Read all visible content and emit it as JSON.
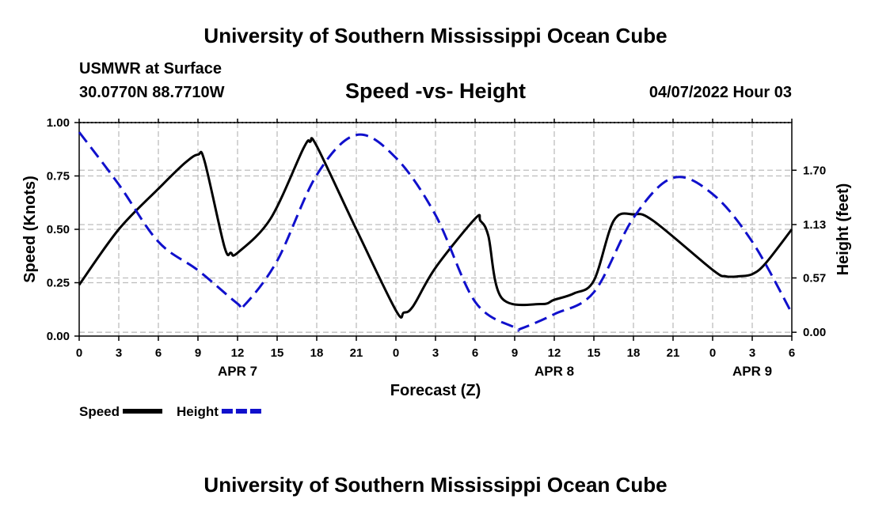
{
  "header": {
    "title": "University of Southern Mississippi Ocean Cube",
    "station": "USMWR at Surface",
    "coords": "30.0770N  88.7710W",
    "subtitle": "Speed -vs- Height",
    "timestamp": "04/07/2022 Hour 03"
  },
  "footer": {
    "title": "University of Southern Mississippi Ocean Cube"
  },
  "chart_data": {
    "type": "line",
    "title": "Speed -vs- Height",
    "xlabel": "Forecast (Z)",
    "ylabel": "Speed (Knots)",
    "y2label": "Height (feet)",
    "x_range": [
      0,
      54
    ],
    "x_ticks": [
      0,
      3,
      6,
      9,
      12,
      15,
      18,
      21,
      24,
      27,
      30,
      33,
      36,
      39,
      42,
      45,
      48,
      51,
      54
    ],
    "x_tick_labels": [
      "0",
      "3",
      "6",
      "9",
      "12",
      "15",
      "18",
      "21",
      "0",
      "3",
      "6",
      "9",
      "12",
      "15",
      "18",
      "21",
      "0",
      "3",
      "6"
    ],
    "date_labels": [
      {
        "x": 12,
        "label": "APR 7"
      },
      {
        "x": 36,
        "label": "APR 8"
      },
      {
        "x": 51,
        "label": "APR 9"
      }
    ],
    "y_range": [
      0,
      1.0
    ],
    "y_ticks": [
      0,
      0.25,
      0.5,
      0.75,
      1.0
    ],
    "y_tick_labels": [
      "0.00",
      "0.25",
      "0.50",
      "0.75",
      "1.00"
    ],
    "y2_range": [
      -0.04,
      2.2
    ],
    "y2_ticks": [
      0.0,
      0.57,
      1.13,
      1.7
    ],
    "y2_tick_labels": [
      "0.00",
      "0.57",
      "1.13",
      "1.70"
    ],
    "grid": true,
    "legend": [
      {
        "name": "Speed",
        "color": "#000000",
        "dashed": false
      },
      {
        "name": "Height",
        "color": "#1010cc",
        "dashed": true
      }
    ],
    "series": [
      {
        "name": "Speed",
        "axis": "left",
        "color": "#000000",
        "x": [
          0,
          3,
          6,
          8,
          9,
          9.5,
          11,
          11.5,
          12,
          14.5,
          17,
          17.5,
          18,
          21,
          24,
          24.6,
          25.3,
          27,
          30,
          30.4,
          31,
          32,
          35,
          36,
          37.5,
          39,
          40.5,
          42,
          43.5,
          48,
          49,
          50,
          51,
          52,
          54
        ],
        "values": [
          0.24,
          0.5,
          0.69,
          0.81,
          0.85,
          0.82,
          0.42,
          0.39,
          0.39,
          0.55,
          0.88,
          0.91,
          0.89,
          0.5,
          0.12,
          0.11,
          0.14,
          0.32,
          0.55,
          0.54,
          0.47,
          0.18,
          0.15,
          0.17,
          0.2,
          0.26,
          0.54,
          0.57,
          0.54,
          0.31,
          0.28,
          0.28,
          0.29,
          0.34,
          0.5
        ]
      },
      {
        "name": "Height",
        "axis": "right",
        "color": "#1010cc",
        "x": [
          0,
          3,
          6,
          9,
          12,
          12.5,
          15,
          18,
          21,
          24,
          27,
          30,
          33,
          33.5,
          36,
          39,
          42,
          45,
          48,
          51,
          54
        ],
        "values": [
          2.1,
          1.55,
          0.95,
          0.65,
          0.3,
          0.28,
          0.75,
          1.65,
          2.07,
          1.83,
          1.23,
          0.32,
          0.05,
          0.04,
          0.19,
          0.42,
          1.2,
          1.62,
          1.45,
          0.95,
          0.2
        ]
      }
    ]
  }
}
